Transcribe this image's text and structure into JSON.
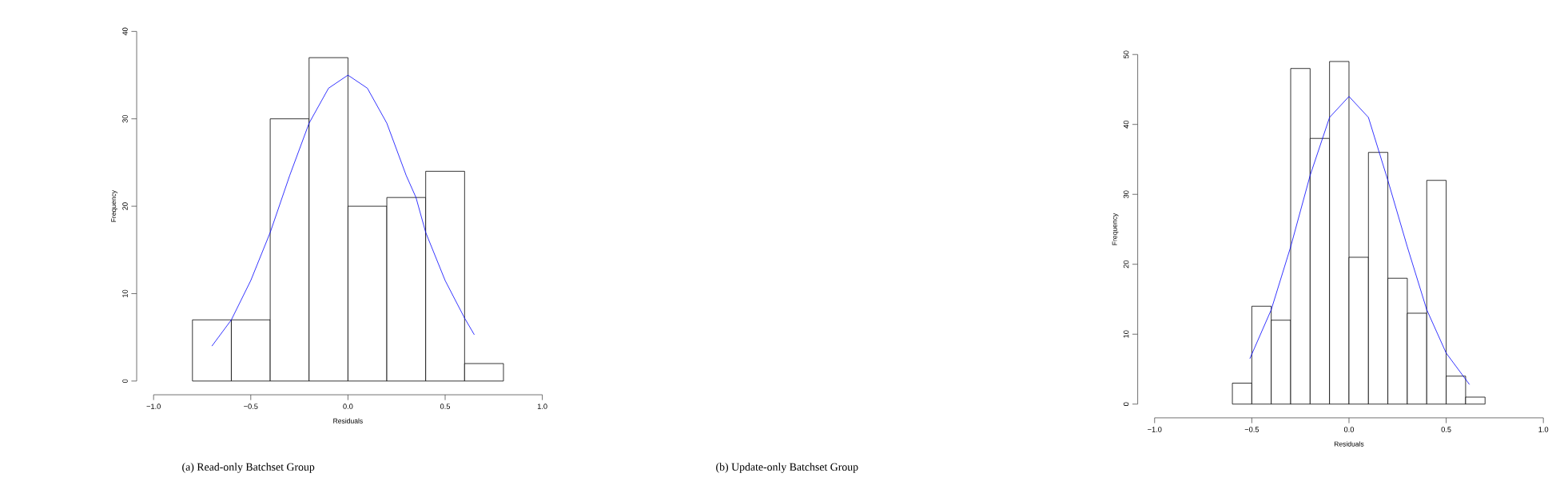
{
  "chart_data": [
    {
      "type": "histogram",
      "xlabel": "Residuals",
      "ylabel": "Frequency",
      "bins": [
        -0.8,
        -0.6,
        -0.4,
        -0.2,
        0.0,
        0.2,
        0.4,
        0.6,
        0.8
      ],
      "values": [
        7,
        7,
        30,
        37,
        20,
        21,
        24,
        2
      ],
      "series": [
        {
          "type": "line",
          "color": "#0000ff",
          "x": [
            -0.7,
            -0.6,
            -0.5,
            -0.4,
            -0.3,
            -0.2,
            -0.1,
            0.0,
            0.1,
            0.2,
            0.3,
            0.35,
            0.4,
            0.5,
            0.6,
            0.65
          ],
          "values": [
            4,
            7,
            11.5,
            17,
            23.5,
            29.5,
            33.5,
            35,
            33.5,
            29.5,
            23.5,
            21,
            17,
            11.5,
            7.2,
            5.3
          ]
        }
      ],
      "xlim": [
        -1,
        1
      ],
      "ylim": [
        0,
        40
      ],
      "xticks": [
        {
          "value": -1,
          "label": "−1.0"
        },
        {
          "value": -0.5,
          "label": "−0.5"
        },
        {
          "value": 0,
          "label": "0.0"
        },
        {
          "value": 0.5,
          "label": "0.5"
        },
        {
          "value": 1,
          "label": "1.0"
        }
      ],
      "yticks": [
        0,
        10,
        20,
        30,
        40
      ],
      "annotations": [
        "(a) Read-only Batchset Group"
      ]
    },
    {
      "type": "histogram",
      "xlabel": "Residuals",
      "ylabel": "Frequency",
      "bins": [
        -0.6,
        -0.5,
        -0.4,
        -0.3,
        -0.2,
        -0.1,
        0.0,
        0.1,
        0.2,
        0.3,
        0.4,
        0.5,
        0.6,
        0.7
      ],
      "values": [
        3,
        14,
        12,
        48,
        38,
        49,
        21,
        36,
        18,
        13,
        32,
        4,
        1
      ],
      "series": [
        {
          "type": "line",
          "color": "#0000ff",
          "x": [
            -0.51,
            -0.4,
            -0.3,
            -0.2,
            -0.1,
            0.0,
            0.1,
            0.2,
            0.3,
            0.4,
            0.5,
            0.62
          ],
          "values": [
            6.5,
            13.5,
            22.5,
            32.7,
            41,
            44,
            41,
            32,
            22.5,
            13.5,
            7.3,
            2.8
          ]
        }
      ],
      "xlim": [
        -1,
        1
      ],
      "ylim": [
        0,
        50
      ],
      "xticks": [
        {
          "value": -1,
          "label": "−1.0"
        },
        {
          "value": -0.5,
          "label": "−0.5"
        },
        {
          "value": 0,
          "label": "0.0"
        },
        {
          "value": 0.5,
          "label": "0.5"
        },
        {
          "value": 1,
          "label": "1.0"
        }
      ],
      "yticks": [
        0,
        10,
        20,
        30,
        40,
        50
      ],
      "annotations": [
        "(b) Update-only Batchset Group"
      ]
    }
  ]
}
